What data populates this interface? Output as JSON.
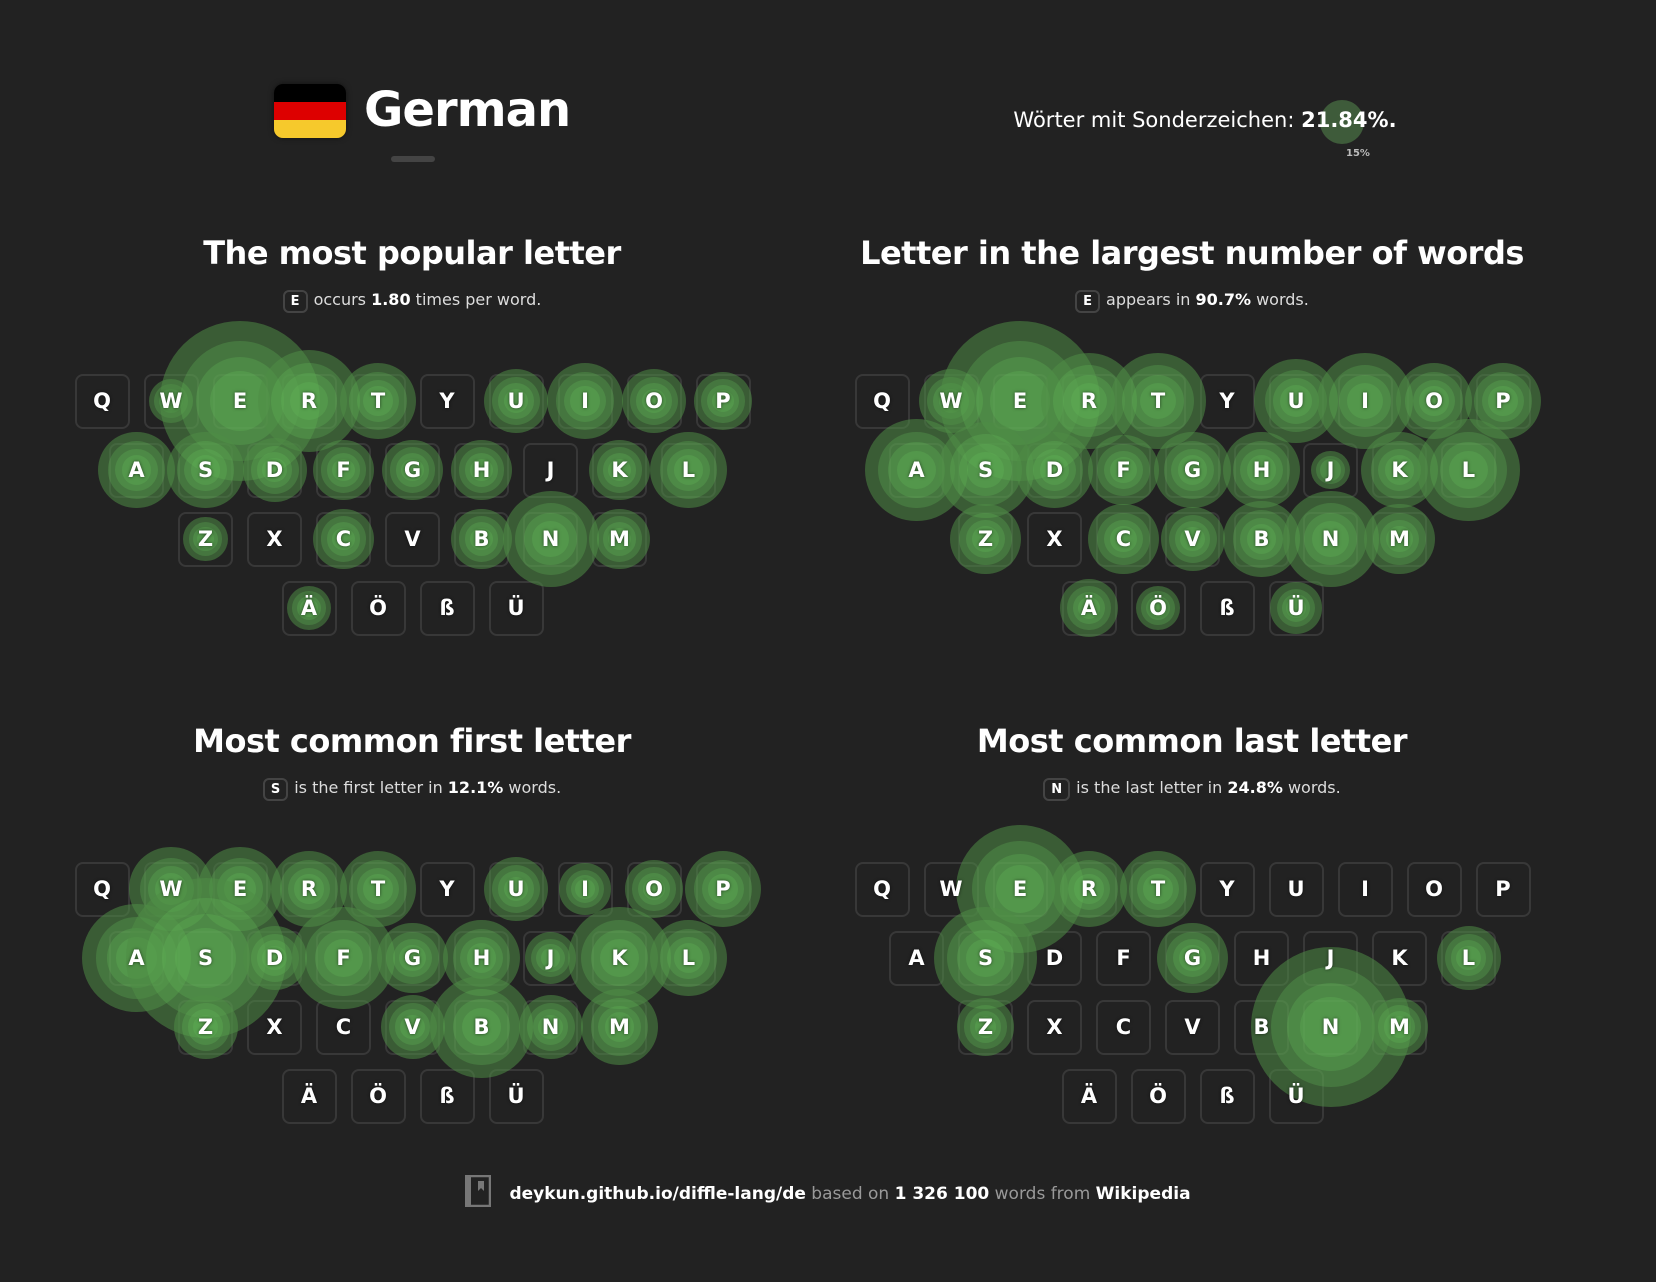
{
  "header": {
    "language": "German",
    "flag_colors": [
      "#000000",
      "#dd0000",
      "#ffce00"
    ],
    "special_label": "Wörter mit Sonderzeichen:",
    "special_value": "21.84%.",
    "special_marker": "15%"
  },
  "accent": "#5cb85c",
  "keyboards": [
    {
      "title": "The most popular letter",
      "letter": "E",
      "pre": "occurs ",
      "value": "1.80",
      "post": " times per word.",
      "heat": {
        "E": 1.0,
        "R": 0.55,
        "N": 0.5,
        "T": 0.35,
        "I": 0.35,
        "L": 0.35,
        "A": 0.35,
        "S": 0.35,
        "U": 0.25,
        "O": 0.25,
        "D": 0.25,
        "F": 0.22,
        "G": 0.22,
        "H": 0.22,
        "K": 0.22,
        "C": 0.22,
        "B": 0.22,
        "M": 0.22,
        "P": 0.2,
        "W": 0.1,
        "Z": 0.1,
        "Ä": 0.1
      }
    },
    {
      "title": "Letter in the largest number of words",
      "letter": "E",
      "pre": "appears in ",
      "value": "90.7%",
      "post": " words.",
      "heat": {
        "E": 1.0,
        "A": 0.55,
        "L": 0.55,
        "R": 0.5,
        "T": 0.5,
        "I": 0.5,
        "S": 0.5,
        "N": 0.5,
        "U": 0.4,
        "O": 0.35,
        "P": 0.35,
        "D": 0.35,
        "H": 0.35,
        "G": 0.35,
        "K": 0.35,
        "B": 0.35,
        "M": 0.3,
        "F": 0.3,
        "Z": 0.3,
        "C": 0.3,
        "V": 0.25,
        "W": 0.25,
        "Ä": 0.2,
        "Ü": 0.15,
        "Ö": 0.1,
        "J": 0.05
      }
    },
    {
      "title": "Most common first letter",
      "letter": "S",
      "pre": "is the first letter in ",
      "value": "12.1%",
      "post": " words.",
      "heat": {
        "S": 1.0,
        "A": 0.6,
        "F": 0.55,
        "K": 0.55,
        "B": 0.55,
        "W": 0.4,
        "E": 0.4,
        "R": 0.35,
        "T": 0.35,
        "H": 0.35,
        "L": 0.35,
        "P": 0.35,
        "M": 0.35,
        "G": 0.3,
        "V": 0.25,
        "Z": 0.25,
        "N": 0.25,
        "U": 0.25,
        "D": 0.25,
        "O": 0.2,
        "I": 0.15,
        "J": 0.15
      }
    },
    {
      "title": "Most common last letter",
      "letter": "N",
      "pre": "is the last letter in ",
      "value": "24.8%",
      "post": " words.",
      "heat": {
        "N": 1.0,
        "E": 0.75,
        "S": 0.55,
        "R": 0.35,
        "T": 0.35,
        "G": 0.3,
        "L": 0.25,
        "M": 0.2,
        "Z": 0.2
      }
    }
  ],
  "layout_rows": [
    [
      "Q",
      "W",
      "E",
      "R",
      "T",
      "Y",
      "U",
      "I",
      "O",
      "P"
    ],
    [
      "A",
      "S",
      "D",
      "F",
      "G",
      "H",
      "J",
      "K",
      "L"
    ],
    [
      "Z",
      "X",
      "C",
      "V",
      "B",
      "N",
      "M"
    ],
    [
      "Ä",
      "Ö",
      "ß",
      "Ü"
    ]
  ],
  "footer": {
    "link": "deykun.github.io/diffle-lang/de",
    "t1": " based on ",
    "count": "1 326 100",
    "t2": " words from ",
    "source": "Wikipedia"
  }
}
